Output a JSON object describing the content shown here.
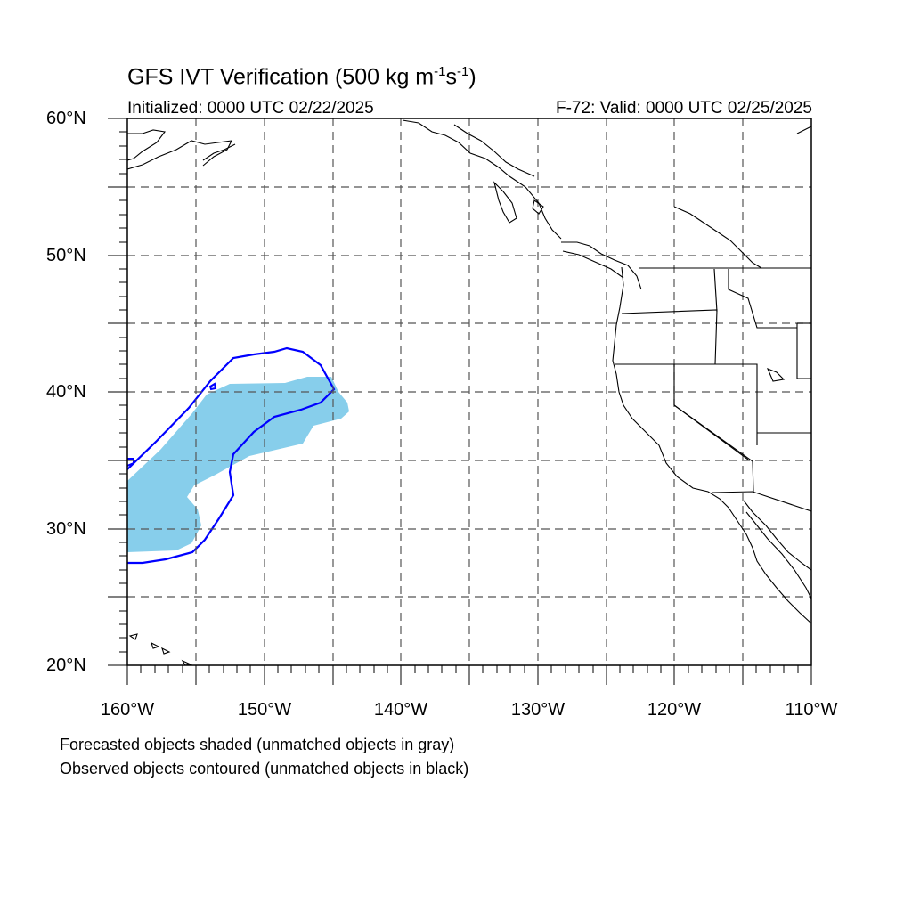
{
  "title": {
    "text": "GFS IVT Verification (500 kg m",
    "sup1": "-1",
    "mid": "s",
    "sup2": "-1",
    "end": ")"
  },
  "initialized": "Initialized: 0000 UTC 02/22/2025",
  "valid": "F-72: Valid: 0000 UTC 02/25/2025",
  "axes": {
    "lat_labels": [
      "60°N",
      "50°N",
      "40°N",
      "30°N",
      "20°N"
    ],
    "lon_labels": [
      "160°W",
      "150°W",
      "140°W",
      "130°W",
      "120°W",
      "110°W"
    ]
  },
  "legend": {
    "line1": "Forecasted objects shaded (unmatched objects in gray)",
    "line2": "Observed objects contoured (unmatched objects in black)"
  },
  "map_data": {
    "projection": "cylindrical equidistant",
    "lon_range": [
      -160,
      -110
    ],
    "lat_range": [
      20,
      60
    ],
    "grid": "dashed, every 5°",
    "colors": {
      "forecast_fill": "#87ceeb",
      "observed_contour": "#0000ff",
      "coastline": "#000000",
      "grid": "#555555"
    }
  }
}
